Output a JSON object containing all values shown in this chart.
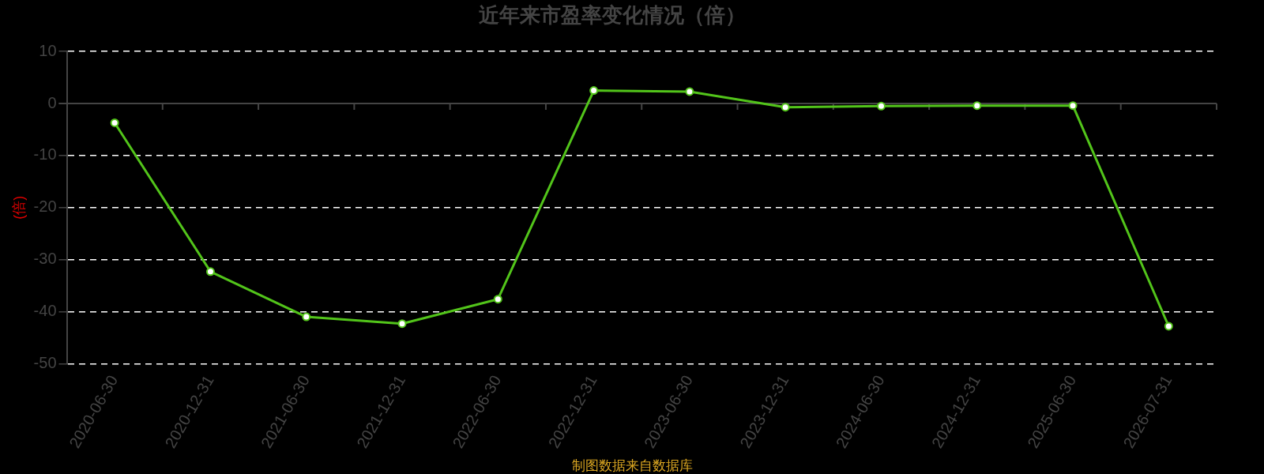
{
  "chart_data": {
    "type": "line",
    "title": "近年来市盈率变化情况（倍）",
    "ylabel": "(倍)",
    "categories": [
      "2020-06-30",
      "2020-12-31",
      "2021-06-30",
      "2021-12-31",
      "2022-06-30",
      "2022-12-31",
      "2023-06-30",
      "2023-12-31",
      "2024-06-30",
      "2024-12-31",
      "2025-06-30",
      "2026-07-31"
    ],
    "series": [
      {
        "color": "#52c41a",
        "values": [
          -3.7,
          -32.3,
          -41,
          -42.3,
          -37.6,
          2.5,
          2.3,
          -0.7,
          -0.5,
          -0.4,
          -0.4,
          -42.8
        ]
      }
    ],
    "ylim": [
      -50,
      10
    ],
    "yticks": [
      -50,
      -40,
      -30,
      -20,
      -10,
      0,
      10
    ],
    "grid": "y",
    "marker": "circle",
    "line_style": "solid",
    "legend": false,
    "annotations": [
      "制图数据来自数据库"
    ]
  }
}
